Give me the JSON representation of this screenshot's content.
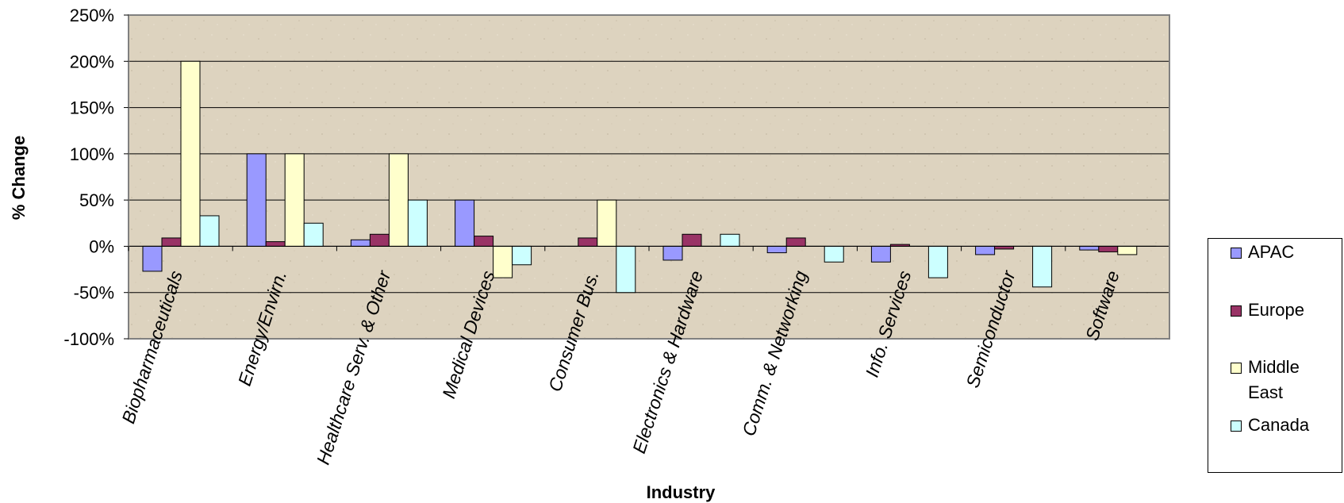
{
  "chart_data": {
    "type": "bar",
    "title": "",
    "xlabel": "Industry",
    "ylabel": "% Change",
    "ylim": [
      -100,
      250
    ],
    "yticks": [
      250,
      200,
      150,
      100,
      50,
      0,
      -50,
      -100
    ],
    "ytick_labels": [
      "250%",
      "200%",
      "150%",
      "100%",
      "50%",
      "0%",
      "-50%",
      "-100%"
    ],
    "grid": true,
    "legend_position": "right",
    "plot_background": "#ddd3bf",
    "categories": [
      "Biopharmaceuticals",
      "Energy/Envirn.",
      "Healthcare Serv. & Other",
      "Medical Devices",
      "Consumer Bus.",
      "Electronics & Hardware",
      "Comm. & Networking",
      "Info. Services",
      "Semiconductor",
      "Software"
    ],
    "series": [
      {
        "name": "APAC",
        "color": "#9999ff",
        "values": [
          -27,
          100,
          7,
          50,
          0,
          -15,
          -7,
          -17,
          -9,
          -4
        ]
      },
      {
        "name": "Europe",
        "color": "#993366",
        "values": [
          9,
          5,
          13,
          11,
          9,
          13,
          9,
          2,
          -3,
          -6
        ]
      },
      {
        "name": "Middle East",
        "color": "#ffffcc",
        "values": [
          200,
          100,
          100,
          -34,
          50,
          0,
          0,
          0,
          0,
          -9
        ]
      },
      {
        "name": "Canada",
        "color": "#ccffff",
        "values": [
          33,
          25,
          50,
          -20,
          -50,
          13,
          -17,
          -34,
          -44,
          0
        ]
      }
    ]
  }
}
